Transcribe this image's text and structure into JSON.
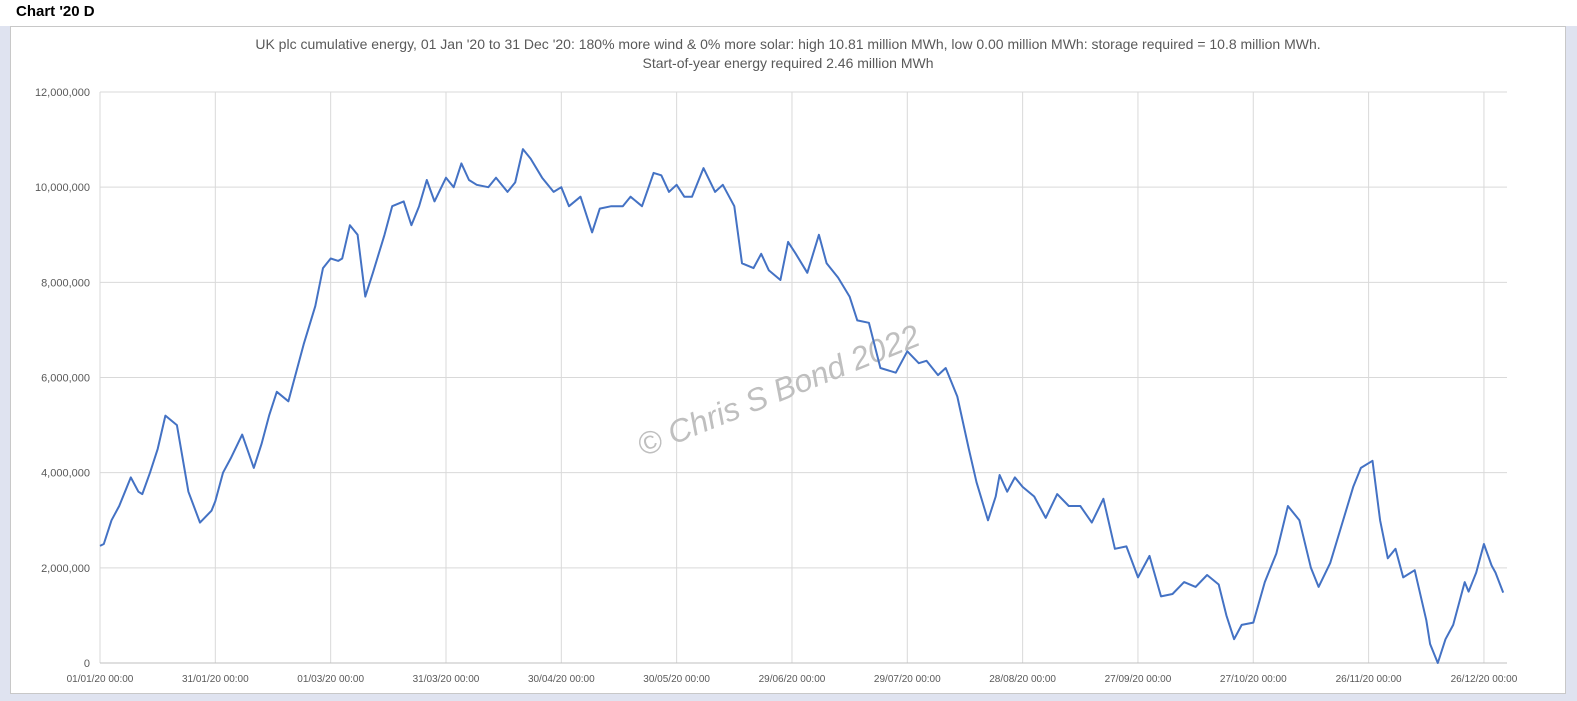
{
  "sheet": {
    "tab_label": "Chart '20 D"
  },
  "watermark": "© Chris S Bond  2022",
  "colors": {
    "line": "#4472c4",
    "grid": "#d9d9d9",
    "axis_text": "#595959"
  },
  "chart_data": {
    "type": "line",
    "title": "UK plc cumulative energy, 01 Jan '20 to 31 Dec '20: 180% more wind & 0% more solar: high 10.81 million MWh, low 0.00 million MWh: storage required = 10.8 million MWh.",
    "subtitle": "Start-of-year energy required 2.46 million MWh",
    "xlabel": "",
    "ylabel": "",
    "ylim": [
      0,
      12000000
    ],
    "xlim": [
      "01/01/20",
      "31/12/20"
    ],
    "grid": true,
    "legend": "none",
    "yticks": [
      "0",
      "2,000,000",
      "4,000,000",
      "6,000,000",
      "8,000,000",
      "10,000,000",
      "12,000,000"
    ],
    "xticks": [
      "01/01/20 00:00",
      "31/01/20 00:00",
      "01/03/20 00:00",
      "31/03/20 00:00",
      "30/04/20 00:00",
      "30/05/20 00:00",
      "29/06/20 00:00",
      "29/07/20 00:00",
      "28/08/20 00:00",
      "27/09/20 00:00",
      "27/10/20 00:00",
      "26/11/20 00:00",
      "26/12/20 00:00"
    ],
    "series": [
      {
        "x": [
          "01/01/20",
          "02/01/20",
          "04/01/20",
          "06/01/20",
          "09/01/20",
          "11/01/20",
          "12/01/20",
          "14/01/20",
          "16/01/20",
          "18/01/20",
          "21/01/20",
          "24/01/20",
          "27/01/20",
          "30/01/20",
          "31/01/20",
          "02/02/20",
          "04/02/20",
          "07/02/20",
          "10/02/20",
          "12/02/20",
          "14/02/20",
          "16/02/20",
          "19/02/20",
          "20/02/20",
          "23/02/20",
          "26/02/20",
          "28/02/20",
          "01/03/20",
          "03/03/20",
          "04/03/20",
          "06/03/20",
          "08/03/20",
          "10/03/20",
          "12/03/20",
          "15/03/20",
          "17/03/20",
          "20/03/20",
          "22/03/20",
          "24/03/20",
          "26/03/20",
          "28/03/20",
          "31/03/20",
          "02/04/20",
          "04/04/20",
          "06/04/20",
          "08/04/20",
          "11/04/20",
          "13/04/20",
          "16/04/20",
          "18/04/20",
          "20/04/20",
          "22/04/20",
          "25/04/20",
          "28/04/20",
          "30/04/20",
          "02/05/20",
          "05/05/20",
          "08/05/20",
          "10/05/20",
          "13/05/20",
          "16/05/20",
          "18/05/20",
          "21/05/20",
          "24/05/20",
          "26/05/20",
          "28/05/20",
          "30/05/20",
          "01/06/20",
          "03/06/20",
          "06/06/20",
          "09/06/20",
          "11/06/20",
          "14/06/20",
          "16/06/20",
          "19/06/20",
          "21/06/20",
          "23/06/20",
          "26/06/20",
          "28/06/20",
          "30/06/20",
          "03/07/20",
          "06/07/20",
          "08/07/20",
          "11/07/20",
          "14/07/20",
          "16/07/20",
          "19/07/20",
          "22/07/20",
          "26/07/20",
          "29/07/20",
          "01/08/20",
          "03/08/20",
          "06/08/20",
          "08/08/20",
          "11/08/20",
          "14/08/20",
          "16/08/20",
          "19/08/20",
          "21/08/20",
          "22/08/20",
          "24/08/20",
          "26/08/20",
          "28/08/20",
          "31/08/20",
          "03/09/20",
          "06/09/20",
          "09/09/20",
          "12/09/20",
          "15/09/20",
          "18/09/20",
          "21/09/20",
          "24/09/20",
          "27/09/20",
          "30/09/20",
          "03/10/20",
          "06/10/20",
          "09/10/20",
          "12/10/20",
          "15/10/20",
          "18/10/20",
          "20/10/20",
          "22/10/20",
          "24/10/20",
          "27/10/20",
          "30/10/20",
          "02/11/20",
          "05/11/20",
          "08/11/20",
          "11/11/20",
          "13/11/20",
          "16/11/20",
          "19/11/20",
          "22/11/20",
          "24/11/20",
          "27/11/20",
          "29/11/20",
          "01/12/20",
          "03/12/20",
          "05/12/20",
          "08/12/20",
          "11/12/20",
          "12/12/20",
          "14/12/20",
          "16/12/20",
          "18/12/20",
          "21/12/20",
          "22/12/20",
          "24/12/20",
          "26/12/20",
          "28/12/20",
          "29/12/20",
          "31/12/20"
        ],
        "y": [
          2460000,
          2500000,
          3000000,
          3300000,
          3900000,
          3600000,
          3550000,
          4000000,
          4500000,
          5200000,
          5000000,
          3600000,
          2950000,
          3200000,
          3400000,
          4000000,
          4300000,
          4800000,
          4100000,
          4600000,
          5200000,
          5700000,
          5500000,
          5800000,
          6700000,
          7500000,
          8300000,
          8500000,
          8450000,
          8500000,
          9200000,
          9000000,
          7700000,
          8200000,
          9000000,
          9600000,
          9700000,
          9200000,
          9600000,
          10150000,
          9700000,
          10200000,
          10000000,
          10500000,
          10150000,
          10050000,
          10000000,
          10200000,
          9900000,
          10100000,
          10800000,
          10600000,
          10200000,
          9900000,
          10000000,
          9600000,
          9800000,
          9050000,
          9550000,
          9600000,
          9600000,
          9800000,
          9600000,
          10300000,
          10250000,
          9900000,
          10050000,
          9800000,
          9800000,
          10400000,
          9900000,
          10050000,
          9600000,
          8400000,
          8300000,
          8600000,
          8250000,
          8050000,
          8850000,
          8600000,
          8200000,
          9000000,
          8400000,
          8100000,
          7700000,
          7200000,
          7150000,
          6200000,
          6100000,
          6550000,
          6300000,
          6350000,
          6050000,
          6200000,
          5600000,
          4500000,
          3800000,
          3000000,
          3500000,
          3950000,
          3600000,
          3900000,
          3700000,
          3500000,
          3050000,
          3550000,
          3300000,
          3300000,
          2950000,
          3450000,
          2400000,
          2450000,
          1800000,
          2250000,
          1400000,
          1450000,
          1700000,
          1600000,
          1850000,
          1650000,
          1000000,
          500000,
          800000,
          850000,
          1700000,
          2300000,
          3300000,
          3000000,
          2000000,
          1600000,
          2100000,
          2900000,
          3700000,
          4100000,
          4250000,
          3000000,
          2200000,
          2400000,
          1800000,
          1950000,
          900000,
          400000,
          0,
          500000,
          800000,
          1700000,
          1500000,
          1900000,
          2500000,
          2050000,
          1900000,
          1480000
        ]
      }
    ]
  }
}
